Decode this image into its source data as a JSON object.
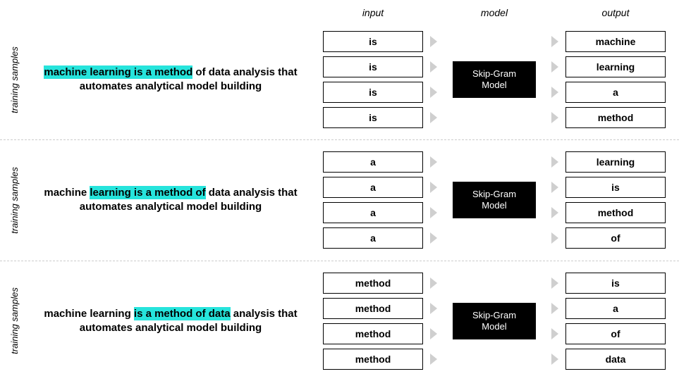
{
  "headers": {
    "input": "input",
    "model": "model",
    "output": "output"
  },
  "side_label": "training samples",
  "model_label": "Skip-Gram\nModel",
  "highlight_color": "#26e4dc",
  "box_border_color": "#000000",
  "model_bg": "#000000",
  "model_fg": "#ffffff",
  "arrow_color": "#cfcfcf",
  "divider_color": "#cccccc",
  "background_color": "#ffffff",
  "font_family": "Arial",
  "sections": [
    {
      "sentence_parts": [
        {
          "text": "machine learning is a method",
          "highlight": true
        },
        {
          "text": " of data analysis that automates analytical model building",
          "highlight": false
        }
      ],
      "inputs": [
        "is",
        "is",
        "is",
        "is"
      ],
      "outputs": [
        "machine",
        "learning",
        "a",
        "method"
      ]
    },
    {
      "sentence_parts": [
        {
          "text": "machine ",
          "highlight": false
        },
        {
          "text": "learning is a method of",
          "highlight": true
        },
        {
          "text": " data analysis that automates analytical model building",
          "highlight": false
        }
      ],
      "inputs": [
        "a",
        "a",
        "a",
        "a"
      ],
      "outputs": [
        "learning",
        "is",
        "method",
        "of"
      ]
    },
    {
      "sentence_parts": [
        {
          "text": "machine learning ",
          "highlight": false
        },
        {
          "text": "is a method of data",
          "highlight": true
        },
        {
          "text": " analysis that automates analytical model building",
          "highlight": false
        }
      ],
      "inputs": [
        "method",
        "method",
        "method",
        "method"
      ],
      "outputs": [
        "is",
        "a",
        "of",
        "data"
      ]
    }
  ]
}
